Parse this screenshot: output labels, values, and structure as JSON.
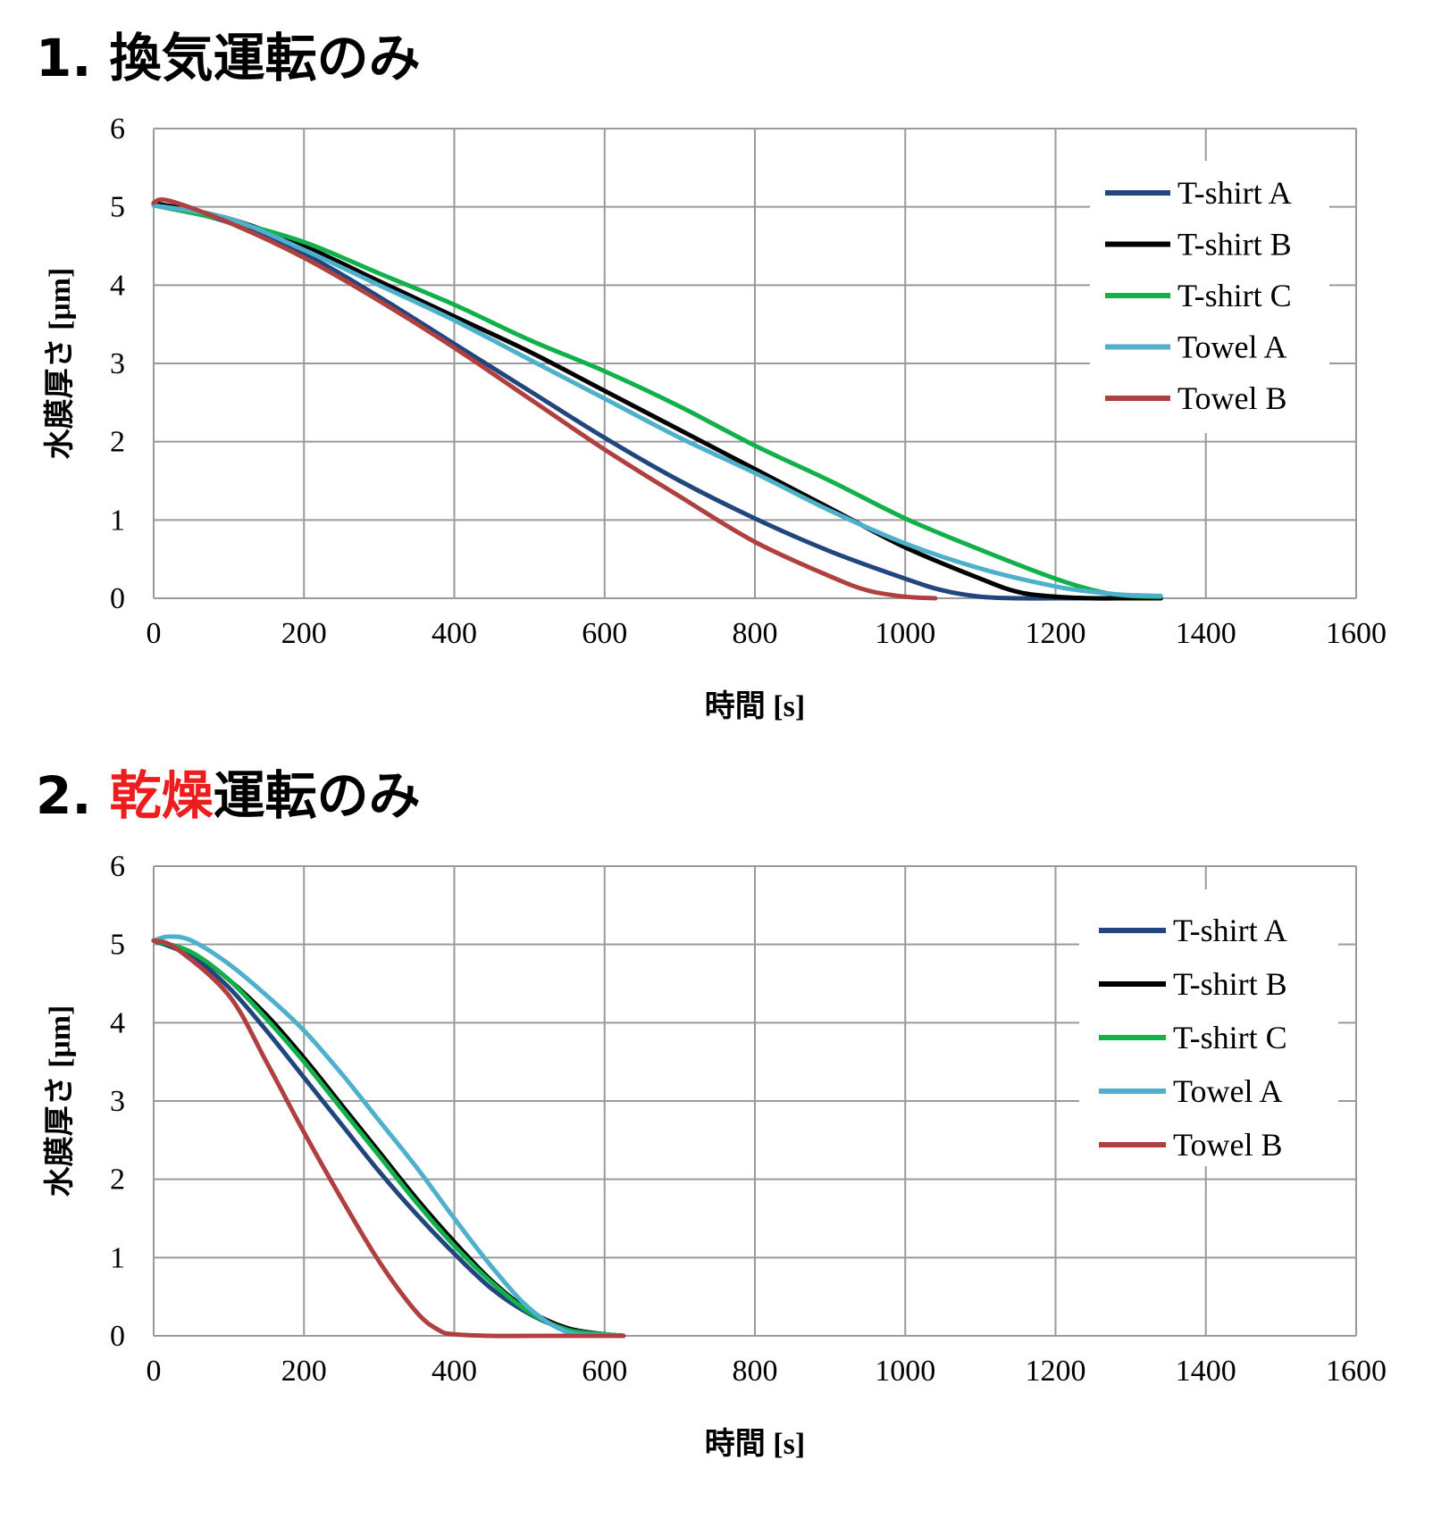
{
  "headings": [
    {
      "number": "1.",
      "highlight": "",
      "rest": "換気運転のみ"
    },
    {
      "number": "2.",
      "highlight": "乾燥",
      "rest": "運転のみ"
    }
  ],
  "colors": {
    "highlight": "#ee1c1c",
    "grid": "#9a9a9a",
    "T-shirt A": "#21467e",
    "T-shirt B": "#000000",
    "T-shirt C": "#11b04b",
    "Towel A": "#4fb0cc",
    "Towel B": "#b0403f"
  },
  "chart_data": [
    {
      "type": "line",
      "title": "換気運転のみ",
      "xlabel": "時間 [s]",
      "ylabel": "水膜厚さ [μm]",
      "xlim": [
        0,
        1600
      ],
      "ylim": [
        0,
        6
      ],
      "xticks": [
        "0",
        "200",
        "400",
        "600",
        "800",
        "1000",
        "1200",
        "1400",
        "1600"
      ],
      "yticks": [
        "0",
        "1",
        "2",
        "3",
        "4",
        "5",
        "6"
      ],
      "grid": true,
      "legend": "right",
      "series": [
        {
          "name": "T-shirt A",
          "x": [
            0,
            100,
            200,
            300,
            400,
            500,
            600,
            700,
            800,
            900,
            1000,
            1050,
            1100,
            1150,
            1200,
            1300,
            1340
          ],
          "y": [
            5.05,
            4.8,
            4.4,
            3.85,
            3.25,
            2.65,
            2.05,
            1.5,
            1.02,
            0.6,
            0.25,
            0.1,
            0.02,
            0,
            0,
            0,
            0
          ]
        },
        {
          "name": "T-shirt B",
          "x": [
            0,
            100,
            200,
            300,
            400,
            500,
            600,
            700,
            800,
            900,
            1000,
            1100,
            1150,
            1200,
            1250,
            1300,
            1340
          ],
          "y": [
            5.05,
            4.85,
            4.5,
            4.05,
            3.6,
            3.15,
            2.65,
            2.15,
            1.65,
            1.15,
            0.65,
            0.25,
            0.08,
            0.02,
            0,
            0,
            0
          ]
        },
        {
          "name": "T-shirt C",
          "x": [
            0,
            100,
            200,
            300,
            400,
            500,
            600,
            700,
            800,
            900,
            1000,
            1100,
            1200,
            1260,
            1300,
            1340
          ],
          "y": [
            5.02,
            4.82,
            4.55,
            4.15,
            3.75,
            3.3,
            2.9,
            2.45,
            1.95,
            1.5,
            1.02,
            0.62,
            0.25,
            0.08,
            0.03,
            0.02
          ]
        },
        {
          "name": "Towel A",
          "x": [
            0,
            100,
            200,
            300,
            400,
            500,
            600,
            700,
            800,
            900,
            1000,
            1100,
            1200,
            1260,
            1300,
            1340
          ],
          "y": [
            5.02,
            4.85,
            4.45,
            4.0,
            3.55,
            3.05,
            2.55,
            2.05,
            1.6,
            1.12,
            0.7,
            0.38,
            0.15,
            0.07,
            0.04,
            0.03
          ]
        },
        {
          "name": "Towel B",
          "x": [
            0,
            20,
            100,
            200,
            300,
            400,
            500,
            600,
            700,
            800,
            900,
            950,
            1000,
            1040
          ],
          "y": [
            5.05,
            5.08,
            4.8,
            4.35,
            3.8,
            3.2,
            2.55,
            1.9,
            1.3,
            0.72,
            0.28,
            0.1,
            0.02,
            0
          ]
        }
      ]
    },
    {
      "type": "line",
      "title": "乾燥運転のみ",
      "xlabel": "時間 [s]",
      "ylabel": "水膜厚さ [μm]",
      "xlim": [
        0,
        1600
      ],
      "ylim": [
        0,
        6
      ],
      "xticks": [
        "0",
        "200",
        "400",
        "600",
        "800",
        "1000",
        "1200",
        "1400",
        "1600"
      ],
      "yticks": [
        "0",
        "1",
        "2",
        "3",
        "4",
        "5",
        "6"
      ],
      "grid": true,
      "legend": "right",
      "series": [
        {
          "name": "T-shirt A",
          "x": [
            0,
            50,
            100,
            150,
            200,
            250,
            300,
            350,
            400,
            450,
            500,
            550,
            600,
            625
          ],
          "y": [
            5.05,
            4.85,
            4.45,
            3.9,
            3.3,
            2.7,
            2.1,
            1.55,
            1.05,
            0.6,
            0.28,
            0.08,
            0.02,
            0
          ]
        },
        {
          "name": "T-shirt B",
          "x": [
            0,
            50,
            100,
            150,
            200,
            250,
            300,
            350,
            400,
            450,
            500,
            550,
            600,
            625
          ],
          "y": [
            5.05,
            4.9,
            4.55,
            4.1,
            3.55,
            2.95,
            2.35,
            1.75,
            1.2,
            0.7,
            0.32,
            0.1,
            0.02,
            0
          ]
        },
        {
          "name": "T-shirt C",
          "x": [
            0,
            50,
            100,
            150,
            200,
            250,
            300,
            350,
            400,
            450,
            500,
            550,
            600,
            625
          ],
          "y": [
            5.05,
            4.9,
            4.55,
            4.05,
            3.5,
            2.9,
            2.3,
            1.7,
            1.15,
            0.68,
            0.3,
            0.08,
            0.02,
            0
          ]
        },
        {
          "name": "Towel A",
          "x": [
            0,
            20,
            50,
            100,
            150,
            200,
            250,
            300,
            350,
            400,
            450,
            500,
            550,
            600,
            625
          ],
          "y": [
            5.05,
            5.1,
            5.05,
            4.75,
            4.35,
            3.9,
            3.35,
            2.75,
            2.15,
            1.5,
            0.88,
            0.35,
            0.05,
            0.01,
            0
          ]
        },
        {
          "name": "Towel B",
          "x": [
            0,
            30,
            100,
            150,
            200,
            250,
            300,
            350,
            380,
            400,
            450,
            500,
            550,
            600,
            625
          ],
          "y": [
            5.05,
            4.95,
            4.35,
            3.5,
            2.6,
            1.75,
            0.95,
            0.3,
            0.07,
            0.02,
            0,
            0,
            0,
            0,
            0
          ]
        }
      ]
    }
  ]
}
